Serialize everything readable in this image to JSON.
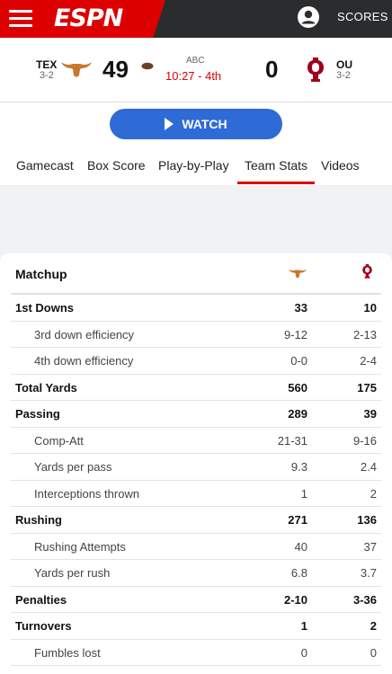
{
  "header": {
    "logo": "ESPN",
    "scores_label": "SCORES"
  },
  "game": {
    "home": {
      "abbr": "TEX",
      "record": "3-2",
      "score": "49"
    },
    "away": {
      "abbr": "OU",
      "record": "3-2",
      "score": "0"
    },
    "network": "ABC",
    "clock": "10:27 - 4th",
    "colors": {
      "texas": "#c8782d",
      "oklahoma": "#a0001e",
      "espn_red": "#dd0000",
      "watch_blue": "#2f6bd6"
    }
  },
  "watch": {
    "label": "WATCH"
  },
  "tabs": [
    {
      "label": "Gamecast"
    },
    {
      "label": "Box Score"
    },
    {
      "label": "Play-by-Play"
    },
    {
      "label": "Team Stats",
      "active": true
    },
    {
      "label": "Videos"
    }
  ],
  "stats": {
    "title": "Matchup",
    "rows": [
      {
        "label": "1st Downs",
        "tex": "33",
        "ou": "10",
        "main": true
      },
      {
        "label": "3rd down efficiency",
        "tex": "9-12",
        "ou": "2-13",
        "main": false
      },
      {
        "label": "4th down efficiency",
        "tex": "0-0",
        "ou": "2-4",
        "main": false
      },
      {
        "label": "Total Yards",
        "tex": "560",
        "ou": "175",
        "main": true
      },
      {
        "label": "Passing",
        "tex": "289",
        "ou": "39",
        "main": true
      },
      {
        "label": "Comp-Att",
        "tex": "21-31",
        "ou": "9-16",
        "main": false
      },
      {
        "label": "Yards per pass",
        "tex": "9.3",
        "ou": "2.4",
        "main": false
      },
      {
        "label": "Interceptions thrown",
        "tex": "1",
        "ou": "2",
        "main": false
      },
      {
        "label": "Rushing",
        "tex": "271",
        "ou": "136",
        "main": true
      },
      {
        "label": "Rushing Attempts",
        "tex": "40",
        "ou": "37",
        "main": false
      },
      {
        "label": "Yards per rush",
        "tex": "6.8",
        "ou": "3.7",
        "main": false
      },
      {
        "label": "Penalties",
        "tex": "2-10",
        "ou": "3-36",
        "main": true
      },
      {
        "label": "Turnovers",
        "tex": "1",
        "ou": "2",
        "main": true
      },
      {
        "label": "Fumbles lost",
        "tex": "0",
        "ou": "0",
        "main": false
      }
    ]
  }
}
